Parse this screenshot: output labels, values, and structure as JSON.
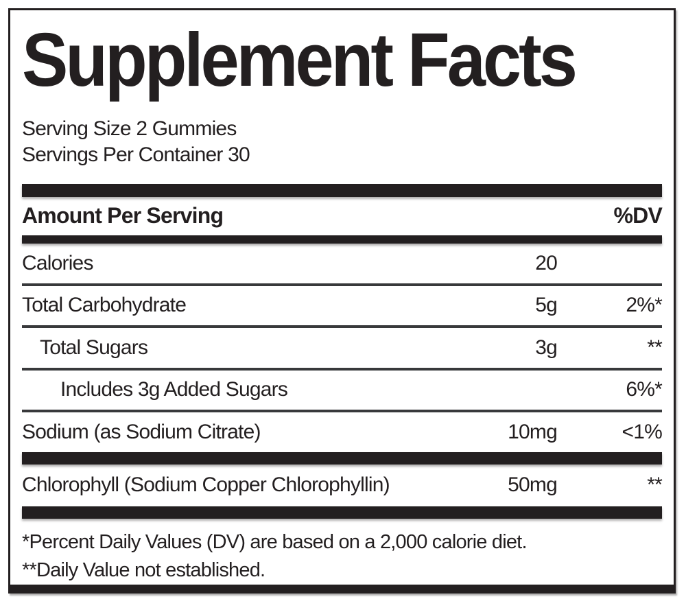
{
  "label": {
    "title": "Supplement Facts",
    "serving": {
      "serving_size": "Serving Size 2 Gummies",
      "servings_per_container": "Servings Per Container 30"
    },
    "columns": {
      "amount_header": "Amount Per Serving",
      "dv_header": "%DV"
    },
    "rows": [
      {
        "name": "Calories",
        "amount": "20",
        "dv": "",
        "indent": 0
      },
      {
        "name": "Total Carbohydrate",
        "amount": "5g",
        "dv": "2%*",
        "indent": 0
      },
      {
        "name": "Total Sugars",
        "amount": "3g",
        "dv": "**",
        "indent": 1
      },
      {
        "name": "Includes 3g Added Sugars",
        "amount": "",
        "dv": "6%*",
        "indent": 2
      },
      {
        "name": "Sodium (as Sodium Citrate)",
        "amount": "10mg",
        "dv": "<1%",
        "indent": 0
      },
      {
        "name": "Chlorophyll (Sodium Copper Chlorophyllin)",
        "amount": "50mg",
        "dv": "**",
        "indent": 0
      }
    ],
    "footnotes": {
      "daily_values": "*Percent Daily Values (DV) are based on a 2,000 calorie diet.",
      "not_established": "**Daily Value not established."
    },
    "colors": {
      "ink": "#231f20",
      "background": "#ffffff"
    }
  }
}
